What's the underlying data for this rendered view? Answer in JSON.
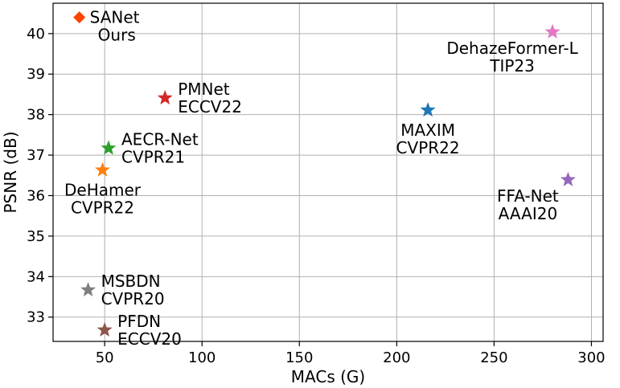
{
  "chart_data": {
    "type": "scatter",
    "title": "",
    "xlabel": "MACs (G)",
    "ylabel": "PSNR (dB)",
    "xlim": [
      23.5,
      306
    ],
    "ylim": [
      32.4,
      40.75
    ],
    "xticks": [
      50,
      100,
      150,
      200,
      250,
      300
    ],
    "yticks": [
      33,
      34,
      35,
      36,
      37,
      38,
      39,
      40
    ],
    "grid": true,
    "legend": "none",
    "points": [
      {
        "name": "SANet",
        "venue": "Ours",
        "x": 37,
        "y": 40.4,
        "marker": "diamond",
        "color": "#ff4500",
        "label_pos": "right-above"
      },
      {
        "name": "DehazeFormer-L",
        "venue": "TIP23",
        "x": 280,
        "y": 40.04,
        "marker": "star",
        "color": "#e377c2",
        "label_pos": "left-below"
      },
      {
        "name": "PMNet",
        "venue": "ECCV22",
        "x": 81,
        "y": 38.41,
        "marker": "star",
        "color": "#d62728",
        "label_pos": "right"
      },
      {
        "name": "MAXIM",
        "venue": "CVPR22",
        "x": 216,
        "y": 38.11,
        "marker": "star",
        "color": "#1f77b4",
        "label_pos": "below"
      },
      {
        "name": "AECR-Net",
        "venue": "CVPR21",
        "x": 52,
        "y": 37.17,
        "marker": "star",
        "color": "#2ca02c",
        "label_pos": "right"
      },
      {
        "name": "DeHamer",
        "venue": "CVPR22",
        "x": 48.9,
        "y": 36.63,
        "marker": "star",
        "color": "#ff7f0e",
        "label_pos": "below"
      },
      {
        "name": "FFA-Net",
        "venue": "AAAI20",
        "x": 288,
        "y": 36.39,
        "marker": "star",
        "color": "#9467bd",
        "label_pos": "left-below"
      },
      {
        "name": "MSBDN",
        "venue": "CVPR20",
        "x": 41.5,
        "y": 33.67,
        "marker": "star",
        "color": "#7f7f7f",
        "label_pos": "right"
      },
      {
        "name": "PFDN",
        "venue": "ECCV20",
        "x": 50,
        "y": 32.68,
        "marker": "star",
        "color": "#8c564b",
        "label_pos": "right"
      }
    ]
  }
}
